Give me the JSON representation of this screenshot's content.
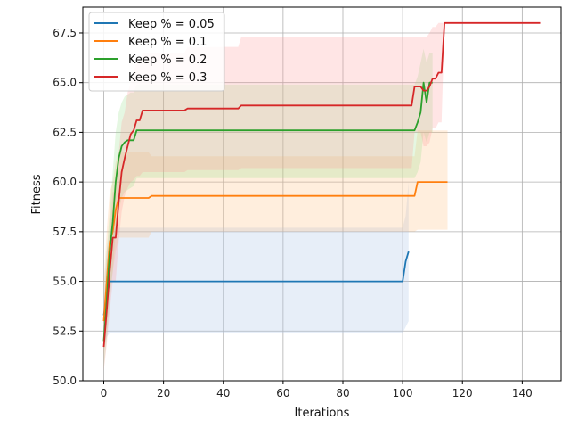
{
  "chart_data": {
    "type": "line",
    "title": "",
    "xlabel": "Iterations",
    "ylabel": "Fitness",
    "xlim": [
      -7,
      153
    ],
    "ylim": [
      50.0,
      68.8
    ],
    "xticks": [
      0,
      20,
      40,
      60,
      80,
      100,
      120,
      140
    ],
    "yticks": [
      50.0,
      52.5,
      55.0,
      57.5,
      60.0,
      62.5,
      65.0,
      67.5
    ],
    "xtick_labels": [
      "0",
      "20",
      "40",
      "60",
      "80",
      "100",
      "120",
      "140"
    ],
    "ytick_labels": [
      "50.0",
      "52.5",
      "55.0",
      "57.5",
      "60.0",
      "62.5",
      "65.0",
      "67.5"
    ],
    "grid": true,
    "legend_position": "top-left",
    "series": [
      {
        "name": "Keep % = 0.05",
        "color": "#1f77b4",
        "band_color": "#aec7e8",
        "band_opacity": 0.3,
        "x": [
          0,
          1,
          2,
          3,
          100,
          101,
          102
        ],
        "y": [
          53.3,
          54.2,
          55.0,
          55.0,
          55.0,
          56.0,
          56.5
        ],
        "lower": [
          51.6,
          52.2,
          52.4,
          52.4,
          52.4,
          52.7,
          53.0
        ],
        "upper": [
          54.8,
          56.5,
          57.6,
          57.7,
          57.7,
          58.3,
          60.0
        ]
      },
      {
        "name": "Keep % = 0.1",
        "color": "#ff7f0e",
        "band_color": "#ffbb78",
        "band_opacity": 0.25,
        "x": [
          0,
          1,
          2,
          3,
          4,
          5,
          15,
          16,
          104,
          105,
          115
        ],
        "y": [
          53.0,
          55.0,
          57.0,
          57.5,
          58.6,
          59.2,
          59.2,
          59.3,
          59.3,
          60.0,
          60.0
        ],
        "lower": [
          51.3,
          52.5,
          54.5,
          55.5,
          56.5,
          57.2,
          57.2,
          57.5,
          57.5,
          57.6,
          57.6
        ],
        "upper": [
          55.0,
          57.5,
          59.5,
          60.0,
          61.0,
          61.5,
          61.5,
          61.3,
          61.3,
          62.6,
          62.6
        ]
      },
      {
        "name": "Keep % = 0.2",
        "color": "#2ca02c",
        "band_color": "#98df8a",
        "band_opacity": 0.25,
        "x": [
          0,
          1,
          2,
          3,
          4,
          5,
          6,
          7,
          8,
          9,
          10,
          11,
          104,
          105,
          106,
          107,
          108,
          109,
          110
        ],
        "y": [
          52.0,
          54.0,
          56.5,
          58.0,
          60.0,
          61.2,
          61.8,
          62.0,
          62.1,
          62.1,
          62.1,
          62.6,
          62.6,
          63.0,
          63.5,
          65.0,
          64.0,
          65.0,
          65.0
        ],
        "lower": [
          50.6,
          52.0,
          54.0,
          55.5,
          57.5,
          58.5,
          59.2,
          59.5,
          59.6,
          59.7,
          59.8,
          60.2,
          60.2,
          60.5,
          61.0,
          62.5,
          62.0,
          62.5,
          62.5
        ],
        "upper": [
          53.5,
          56.5,
          58.5,
          60.5,
          62.5,
          63.5,
          64.0,
          64.3,
          64.4,
          64.5,
          64.5,
          64.9,
          64.9,
          65.3,
          66.0,
          66.7,
          66.0,
          66.5,
          66.5
        ]
      },
      {
        "name": "Keep % = 0.3",
        "color": "#d62728",
        "band_color": "#ff9896",
        "band_opacity": 0.25,
        "x": [
          0,
          1,
          2,
          3,
          4,
          5,
          6,
          7,
          8,
          9,
          10,
          11,
          12,
          13,
          27,
          28,
          45,
          46,
          103,
          104,
          106,
          107,
          108,
          109,
          110,
          111,
          112,
          113,
          114,
          115,
          146
        ],
        "y": [
          51.7,
          53.5,
          55.5,
          57.2,
          57.2,
          59.0,
          60.5,
          61.2,
          61.8,
          62.4,
          62.6,
          63.1,
          63.1,
          63.6,
          63.6,
          63.7,
          63.7,
          63.85,
          63.85,
          64.8,
          64.8,
          64.6,
          64.6,
          64.8,
          65.2,
          65.2,
          65.5,
          65.5,
          68.0,
          68.0,
          68.0
        ],
        "lower": [
          50.5,
          51.8,
          53.5,
          55.0,
          55.0,
          57.0,
          58.5,
          59.3,
          59.7,
          60.0,
          60.1,
          60.3,
          60.3,
          60.5,
          60.5,
          60.6,
          60.6,
          60.7,
          60.7,
          62.5,
          62.5,
          61.8,
          61.8,
          62.0,
          62.7,
          62.7,
          63.0,
          63.0,
          68.0,
          68.0,
          68.0
        ],
        "upper": [
          53.2,
          55.5,
          57.5,
          59.5,
          59.5,
          61.5,
          63.0,
          63.5,
          64.5,
          65.0,
          65.6,
          66.0,
          66.0,
          66.5,
          66.5,
          66.8,
          66.8,
          67.3,
          67.3,
          67.3,
          67.3,
          67.3,
          67.3,
          67.5,
          67.8,
          67.8,
          68.0,
          68.0,
          68.0,
          68.0,
          68.0
        ]
      }
    ]
  }
}
